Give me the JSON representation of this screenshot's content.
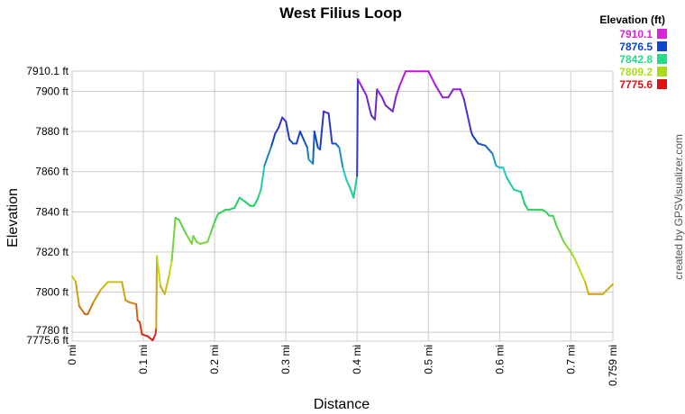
{
  "chart_data": {
    "type": "line",
    "title": "West Filius Loop",
    "xlabel": "Distance",
    "ylabel": "Elevation",
    "xlim": [
      0,
      0.759
    ],
    "ylim": [
      7775.6,
      7910.1
    ],
    "grid": true,
    "x_ticks": [
      {
        "v": 0,
        "label": "0 mi"
      },
      {
        "v": 0.1,
        "label": "0.1 mi"
      },
      {
        "v": 0.2,
        "label": "0.2 mi"
      },
      {
        "v": 0.3,
        "label": "0.3 mi"
      },
      {
        "v": 0.4,
        "label": "0.4 mi"
      },
      {
        "v": 0.5,
        "label": "0.5 mi"
      },
      {
        "v": 0.6,
        "label": "0.6 mi"
      },
      {
        "v": 0.7,
        "label": "0.7 mi"
      },
      {
        "v": 0.759,
        "label": "0.759 mi"
      }
    ],
    "y_ticks": [
      {
        "v": 7775.6,
        "label": "7775.6 ft"
      },
      {
        "v": 7780,
        "label": "7780 ft"
      },
      {
        "v": 7800,
        "label": "7800 ft"
      },
      {
        "v": 7820,
        "label": "7820 ft"
      },
      {
        "v": 7840,
        "label": "7840 ft"
      },
      {
        "v": 7860,
        "label": "7860 ft"
      },
      {
        "v": 7880,
        "label": "7880 ft"
      },
      {
        "v": 7900,
        "label": "7900 ft"
      },
      {
        "v": 7910.1,
        "label": "7910.1 ft"
      }
    ],
    "legend": {
      "title": "Elevation (ft)",
      "placement": "top-right",
      "entries": [
        {
          "label": "7910.1",
          "color": "#dd22dd"
        },
        {
          "label": "7876.5",
          "color": "#1144cc"
        },
        {
          "label": "7842.8",
          "color": "#22dd88"
        },
        {
          "label": "7809.2",
          "color": "#aadd11"
        },
        {
          "label": "7775.6",
          "color": "#dd1111"
        }
      ]
    },
    "color_stops": [
      {
        "elev": 7775.6,
        "color": "#dd1111"
      },
      {
        "elev": 7809.2,
        "color": "#c8dc14"
      },
      {
        "elev": 7842.8,
        "color": "#20d060"
      },
      {
        "elev": 7860,
        "color": "#20c8c8"
      },
      {
        "elev": 7876.5,
        "color": "#1040c0"
      },
      {
        "elev": 7910.1,
        "color": "#cc10dd"
      }
    ],
    "series": [
      {
        "x": [
          0,
          0.005,
          0.01,
          0.018,
          0.022,
          0.03,
          0.04,
          0.05,
          0.055,
          0.07,
          0.075,
          0.08,
          0.09,
          0.092,
          0.095,
          0.098,
          0.106,
          0.113,
          0.117,
          0.118,
          0.119,
          0.124,
          0.13,
          0.136,
          0.14,
          0.145,
          0.15,
          0.16,
          0.168,
          0.17,
          0.175,
          0.18,
          0.19,
          0.195,
          0.2,
          0.205,
          0.215,
          0.22,
          0.228,
          0.235,
          0.243,
          0.25,
          0.255,
          0.26,
          0.265,
          0.27,
          0.28,
          0.285,
          0.29,
          0.295,
          0.3,
          0.305,
          0.31,
          0.315,
          0.32,
          0.325,
          0.33,
          0.332,
          0.338,
          0.34,
          0.345,
          0.348,
          0.353,
          0.36,
          0.365,
          0.37,
          0.375,
          0.38,
          0.385,
          0.39,
          0.395,
          0.4,
          0.401,
          0.41,
          0.413,
          0.415,
          0.42,
          0.425,
          0.428,
          0.435,
          0.44,
          0.45,
          0.455,
          0.46,
          0.468,
          0.47,
          0.475,
          0.48,
          0.49,
          0.5,
          0.51,
          0.52,
          0.528,
          0.535,
          0.545,
          0.55,
          0.56,
          0.562,
          0.57,
          0.58,
          0.59,
          0.595,
          0.6,
          0.605,
          0.61,
          0.62,
          0.63,
          0.635,
          0.64,
          0.645,
          0.66,
          0.665,
          0.67,
          0.675,
          0.68,
          0.69,
          0.7,
          0.705,
          0.72,
          0.725,
          0.73,
          0.745,
          0.759
        ],
        "y": [
          7808,
          7805,
          7793,
          7789,
          7789,
          7795,
          7801,
          7805,
          7805,
          7805,
          7796,
          7795,
          7794,
          7786,
          7785,
          7779,
          7778,
          7776,
          7779,
          7782,
          7818,
          7803,
          7799,
          7808,
          7816,
          7837,
          7836,
          7829,
          7824,
          7828,
          7825,
          7824,
          7825,
          7830,
          7835,
          7839,
          7841,
          7841,
          7842,
          7847,
          7845,
          7843,
          7843,
          7846,
          7851,
          7863,
          7873,
          7879,
          7882,
          7887,
          7885,
          7876,
          7874,
          7874,
          7880,
          7876,
          7872,
          7866,
          7864,
          7880,
          7872,
          7871,
          7890,
          7889,
          7874,
          7874,
          7872,
          7862,
          7856,
          7852,
          7847,
          7858,
          7906,
          7900,
          7898,
          7895,
          7888,
          7886,
          7901,
          7897,
          7893,
          7890,
          7898,
          7903,
          7910,
          7910,
          7910,
          7910,
          7910,
          7910,
          7903,
          7897,
          7897,
          7901,
          7901,
          7896,
          7880,
          7878,
          7874,
          7873,
          7869,
          7863,
          7862,
          7862,
          7857,
          7851,
          7850,
          7844,
          7841,
          7841,
          7841,
          7840,
          7838,
          7838,
          7833,
          7825,
          7820,
          7817,
          7805,
          7799,
          7799,
          7799,
          7804
        ]
      }
    ]
  },
  "credit": "created by GPSVisualizer.com"
}
